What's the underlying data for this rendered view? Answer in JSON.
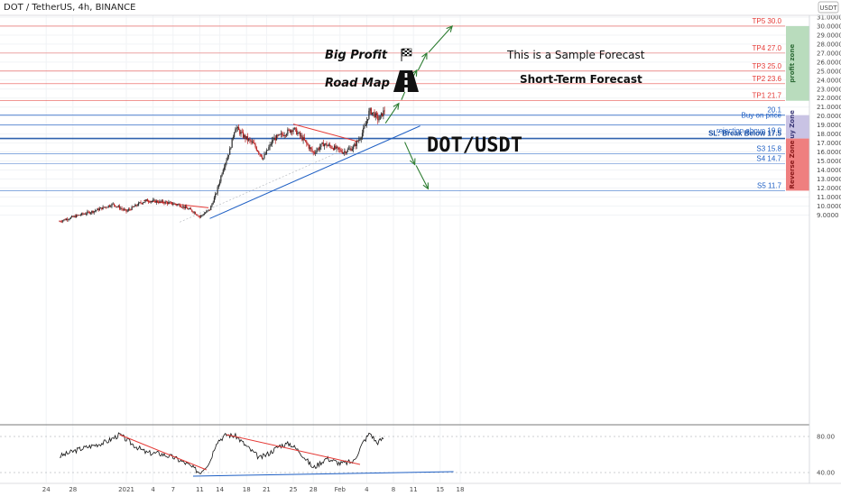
{
  "header": {
    "title": "DOT / TetherUS, 4h, BINANCE",
    "currency_badge": "USDT",
    "big_profit": "Big Profit",
    "road_map": "Road Map",
    "sample_forecast": "This is a Sample Forecast",
    "short_term": "Short-Term Forecast",
    "pair": "DOT/USDT",
    "flag_icon": "checkered-flag-icon",
    "road_icon": "road-icon"
  },
  "colors": {
    "red_level": "#e53935",
    "blue_level": "#1e5fc4",
    "sl_line": "#0d47a1",
    "candle_up": "#2e2e2e",
    "candle_down": "#b71c1c",
    "profit_zone": "#b9dcbd",
    "buy_zone": "#c9c3e4",
    "reverse_zone": "#ef7f7f",
    "arrow": "#2e7d32",
    "rsi_line": "#111111",
    "trend_red": "#e53935",
    "trend_blue": "#1e5fc4"
  },
  "chart_data": {
    "type": "candlestick",
    "symbol": "DOT / TetherUS",
    "timeframe": "4h",
    "exchange": "BINANCE",
    "y_axis": {
      "min": 9,
      "max": 31,
      "ticks": [
        "31.0000",
        "30.0000",
        "29.0000",
        "28.0000",
        "27.0000",
        "26.0000",
        "25.0000",
        "24.0000",
        "23.0000",
        "22.0000",
        "21.0000",
        "20.0000",
        "19.0000",
        "18.0000",
        "17.0000",
        "16.0000",
        "15.0000",
        "14.0000",
        "13.0000",
        "12.0000",
        "11.0000",
        "10.0000",
        "9.0000"
      ]
    },
    "x_axis": {
      "ticks": [
        "24",
        "28",
        "2021",
        "4",
        "7",
        "11",
        "14",
        "18",
        "21",
        "25",
        "28",
        "Feb",
        "4",
        "8",
        "11",
        "15",
        "18"
      ]
    },
    "levels": [
      {
        "label": "TP5 30.0",
        "value": 30.0,
        "kind": "tp"
      },
      {
        "label": "TP4 27.0",
        "value": 27.0,
        "kind": "tp"
      },
      {
        "label": "TP3 25.0",
        "value": 25.0,
        "kind": "tp"
      },
      {
        "label": "TP2 23.6",
        "value": 23.6,
        "kind": "tp"
      },
      {
        "label": "TP1 21.7",
        "value": 21.7,
        "kind": "tp"
      },
      {
        "label": "20.1",
        "value": 20.1,
        "kind": "info"
      },
      {
        "label": "Buy on price",
        "value": 19.0,
        "kind": "buy"
      },
      {
        "label": "rejection above 19.0",
        "value": 19.0,
        "kind": "buy"
      },
      {
        "label": "SL: Break Below 17.5",
        "value": 17.5,
        "kind": "sl"
      },
      {
        "label": "S3 15.8",
        "value": 15.8,
        "kind": "support"
      },
      {
        "label": "S4 14.7",
        "value": 14.7,
        "kind": "support"
      },
      {
        "label": "S5 11.7",
        "value": 11.7,
        "kind": "support"
      }
    ],
    "zones": [
      {
        "label": "profit zone",
        "from": 21.7,
        "to": 30.0
      },
      {
        "label": "Buy Zone",
        "from": 17.5,
        "to": 20.1
      },
      {
        "label": "Reverse Zone",
        "from": 11.7,
        "to": 17.5
      }
    ],
    "price_anchors": [
      {
        "day": -10,
        "price": 8.3
      },
      {
        "day": -7,
        "price": 9.0
      },
      {
        "day": -5,
        "price": 9.4
      },
      {
        "day": -2,
        "price": 10.2
      },
      {
        "day": 0,
        "price": 9.4
      },
      {
        "day": 2,
        "price": 10.3
      },
      {
        "day": 3,
        "price": 10.6
      },
      {
        "day": 6,
        "price": 10.4
      },
      {
        "day": 8,
        "price": 10.1
      },
      {
        "day": 10,
        "price": 9.4
      },
      {
        "day": 11,
        "price": 8.8
      },
      {
        "day": 12.5,
        "price": 9.6
      },
      {
        "day": 13.5,
        "price": 11.5
      },
      {
        "day": 14.5,
        "price": 14.2
      },
      {
        "day": 15.5,
        "price": 16.2
      },
      {
        "day": 16.3,
        "price": 18.8
      },
      {
        "day": 17.5,
        "price": 17.8
      },
      {
        "day": 19,
        "price": 16.9
      },
      {
        "day": 20.5,
        "price": 15.3
      },
      {
        "day": 22,
        "price": 17.4
      },
      {
        "day": 23.5,
        "price": 18.0
      },
      {
        "day": 25,
        "price": 18.6
      },
      {
        "day": 26.5,
        "price": 17.4
      },
      {
        "day": 28,
        "price": 15.9
      },
      {
        "day": 29.5,
        "price": 16.9
      },
      {
        "day": 31,
        "price": 16.5
      },
      {
        "day": 32.5,
        "price": 16.0
      },
      {
        "day": 34,
        "price": 16.5
      },
      {
        "day": 35,
        "price": 17.6
      },
      {
        "day": 35.8,
        "price": 18.9
      },
      {
        "day": 36.4,
        "price": 20.6
      },
      {
        "day": 37,
        "price": 20.3
      },
      {
        "day": 37.8,
        "price": 19.6
      },
      {
        "day": 38.8,
        "price": 20.8
      }
    ],
    "trendlines": [
      {
        "name": "dec-descending",
        "color": "red",
        "from": {
          "day": 2.6,
          "price": 10.6
        },
        "to": {
          "day": 12.3,
          "price": 9.8
        }
      },
      {
        "name": "jan-descending",
        "color": "red",
        "from": {
          "day": 25,
          "price": 19.1
        },
        "to": {
          "day": 34.5,
          "price": 17.2
        }
      },
      {
        "name": "ascending-support",
        "color": "blue",
        "from": {
          "day": 12.5,
          "price": 8.6
        },
        "to": {
          "day": 44,
          "price": 18.9
        }
      },
      {
        "name": "thin-support",
        "color": "grey",
        "from": {
          "day": 8,
          "price": 8.2
        },
        "to": {
          "day": 34,
          "price": 16.7
        }
      }
    ],
    "forecast_arrows": [
      {
        "direction": "up",
        "from": {
          "day": 38.8,
          "price": 19.2
        },
        "to": {
          "day": 40.8,
          "price": 21.4
        }
      },
      {
        "direction": "up",
        "from": {
          "day": 41.2,
          "price": 21.8
        },
        "to": {
          "day": 42.3,
          "price": 23.7
        }
      },
      {
        "direction": "up",
        "from": {
          "day": 42.5,
          "price": 23.8
        },
        "to": {
          "day": 43.5,
          "price": 25.1
        }
      },
      {
        "direction": "up",
        "from": {
          "day": 43.7,
          "price": 25.1
        },
        "to": {
          "day": 45,
          "price": 27.0
        }
      },
      {
        "direction": "up",
        "from": {
          "day": 45.3,
          "price": 27.1
        },
        "to": {
          "day": 48.8,
          "price": 30.0
        }
      },
      {
        "direction": "down",
        "from": {
          "day": 41.7,
          "price": 17.1
        },
        "to": {
          "day": 43.2,
          "price": 14.6
        }
      },
      {
        "direction": "down",
        "from": {
          "day": 43.4,
          "price": 14.5
        },
        "to": {
          "day": 45.2,
          "price": 11.9
        }
      }
    ],
    "rsi": {
      "ticks": [
        "80.00",
        "40.00"
      ],
      "range": [
        30,
        90
      ],
      "anchors": [
        {
          "day": -10,
          "v": 58
        },
        {
          "day": -7,
          "v": 66
        },
        {
          "day": -5,
          "v": 70
        },
        {
          "day": -3,
          "v": 74
        },
        {
          "day": -1,
          "v": 82
        },
        {
          "day": 1,
          "v": 71
        },
        {
          "day": 3,
          "v": 62
        },
        {
          "day": 5,
          "v": 61
        },
        {
          "day": 7,
          "v": 57
        },
        {
          "day": 9,
          "v": 50
        },
        {
          "day": 11,
          "v": 40
        },
        {
          "day": 12.5,
          "v": 52
        },
        {
          "day": 13.5,
          "v": 74
        },
        {
          "day": 15,
          "v": 82
        },
        {
          "day": 16.5,
          "v": 80
        },
        {
          "day": 18,
          "v": 69
        },
        {
          "day": 20,
          "v": 56
        },
        {
          "day": 21.5,
          "v": 62
        },
        {
          "day": 23,
          "v": 70
        },
        {
          "day": 24.5,
          "v": 72
        },
        {
          "day": 26,
          "v": 63
        },
        {
          "day": 28,
          "v": 45
        },
        {
          "day": 30,
          "v": 56
        },
        {
          "day": 32,
          "v": 50
        },
        {
          "day": 34,
          "v": 52
        },
        {
          "day": 35.5,
          "v": 74
        },
        {
          "day": 36.5,
          "v": 84
        },
        {
          "day": 37.5,
          "v": 73
        },
        {
          "day": 38.5,
          "v": 78
        }
      ],
      "trendlines": [
        {
          "color": "red",
          "from": {
            "day": -1,
            "v": 82
          },
          "to": {
            "day": 12,
            "v": 43
          }
        },
        {
          "color": "red",
          "from": {
            "day": 15,
            "v": 82
          },
          "to": {
            "day": 35,
            "v": 49
          }
        },
        {
          "color": "blue",
          "from": {
            "day": 10,
            "v": 36
          },
          "to": {
            "day": 49,
            "v": 41
          }
        }
      ]
    }
  }
}
